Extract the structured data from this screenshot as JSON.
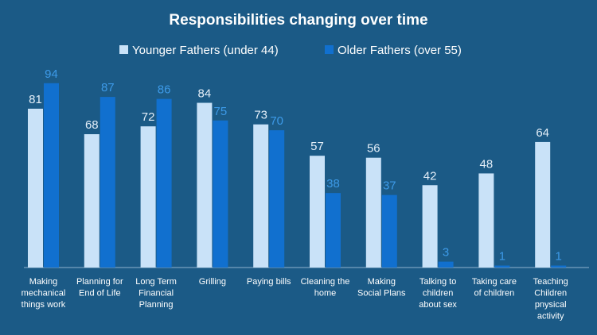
{
  "chart_data": {
    "type": "bar",
    "title": "Responsibilities changing over time",
    "categories": [
      "Making mechanical things work",
      "Planning for End of Life",
      "Long Term Financial Planning",
      "Grilling",
      "Paying bills",
      "Cleaning the home",
      "Making Social Plans",
      "Talking to children about sex",
      "Taking care of children",
      "Teaching Children pnysical activity"
    ],
    "category_lines": [
      [
        "Making",
        "mechanical",
        "things work"
      ],
      [
        "Planning for",
        "End of Life"
      ],
      [
        "Long Term",
        "Financial",
        "Planning"
      ],
      [
        "Grilling"
      ],
      [
        "Paying bills"
      ],
      [
        "Cleaning the",
        "home"
      ],
      [
        "Making",
        "Social Plans"
      ],
      [
        "Talking to",
        "children",
        "about sex"
      ],
      [
        "Taking care",
        "of children"
      ],
      [
        "Teaching",
        "Children",
        "pnysical",
        "activity"
      ]
    ],
    "series": [
      {
        "name": "Younger Fathers (under 44)",
        "color": "#c9e2f8",
        "label_color": "#e3eef8",
        "values": [
          81,
          68,
          72,
          84,
          73,
          57,
          56,
          42,
          48,
          64
        ]
      },
      {
        "name": "Older Fathers (over 55)",
        "color": "#1170cf",
        "label_color": "#3d9ae8",
        "values": [
          94,
          87,
          86,
          75,
          70,
          38,
          37,
          3,
          1,
          1
        ]
      }
    ],
    "ylim": [
      0,
      100
    ],
    "grid": false,
    "legend": "top-center",
    "xlabel": "",
    "ylabel": ""
  },
  "colors": {
    "background": "#1b5a86",
    "axis_line": "#8fb3cf"
  }
}
